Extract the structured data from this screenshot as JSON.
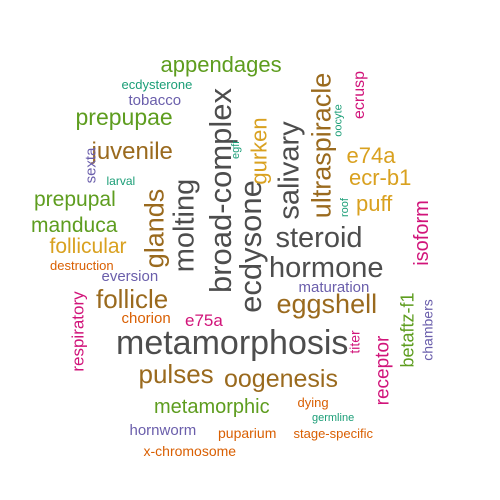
{
  "colors": {
    "dark_gray": "#4d4d4d",
    "brown": "#9a6a1e",
    "green": "#5e9d1f",
    "gold": "#d9a120",
    "magenta": "#d1147a",
    "purple": "#6a5eab",
    "teal": "#1b9e77",
    "orange": "#d95f02"
  },
  "words": [
    {
      "text": "metamorphosis",
      "color": "dark_gray"
    },
    {
      "text": "hormone",
      "color": "dark_gray"
    },
    {
      "text": "steroid",
      "color": "dark_gray"
    },
    {
      "text": "ecdysone",
      "color": "dark_gray"
    },
    {
      "text": "broad-complex",
      "color": "dark_gray"
    },
    {
      "text": "molting",
      "color": "dark_gray"
    },
    {
      "text": "salivary",
      "color": "dark_gray"
    },
    {
      "text": "glands",
      "color": "brown"
    },
    {
      "text": "ultraspiracle",
      "color": "brown"
    },
    {
      "text": "eggshell",
      "color": "brown"
    },
    {
      "text": "follicle",
      "color": "brown"
    },
    {
      "text": "pulses",
      "color": "brown"
    },
    {
      "text": "oogenesis",
      "color": "brown"
    },
    {
      "text": "juvenile",
      "color": "brown"
    },
    {
      "text": "gurken",
      "color": "gold"
    },
    {
      "text": "puff",
      "color": "gold"
    },
    {
      "text": "ecr-b1",
      "color": "gold"
    },
    {
      "text": "e74a",
      "color": "gold"
    },
    {
      "text": "follicular",
      "color": "gold"
    },
    {
      "text": "appendages",
      "color": "green"
    },
    {
      "text": "prepupae",
      "color": "green"
    },
    {
      "text": "prepupal",
      "color": "green"
    },
    {
      "text": "manduca",
      "color": "green"
    },
    {
      "text": "metamorphic",
      "color": "green"
    },
    {
      "text": "betaftz-f1",
      "color": "green"
    },
    {
      "text": "isoform",
      "color": "magenta"
    },
    {
      "text": "receptor",
      "color": "magenta"
    },
    {
      "text": "respiratory",
      "color": "magenta"
    },
    {
      "text": "e75a",
      "color": "magenta"
    },
    {
      "text": "ecrusp",
      "color": "magenta"
    },
    {
      "text": "titer",
      "color": "magenta"
    },
    {
      "text": "tobacco",
      "color": "purple"
    },
    {
      "text": "sexta",
      "color": "purple"
    },
    {
      "text": "eversion",
      "color": "purple"
    },
    {
      "text": "maturation",
      "color": "purple"
    },
    {
      "text": "chambers",
      "color": "purple"
    },
    {
      "text": "hornworm",
      "color": "purple"
    },
    {
      "text": "ecdysterone",
      "color": "teal"
    },
    {
      "text": "larval",
      "color": "teal"
    },
    {
      "text": "oocyte",
      "color": "teal"
    },
    {
      "text": "egfr",
      "color": "teal"
    },
    {
      "text": "roof",
      "color": "teal"
    },
    {
      "text": "germline",
      "color": "teal"
    },
    {
      "text": "destruction",
      "color": "orange"
    },
    {
      "text": "chorion",
      "color": "orange"
    },
    {
      "text": "dying",
      "color": "orange"
    },
    {
      "text": "puparium",
      "color": "orange"
    },
    {
      "text": "stage-specific",
      "color": "orange"
    },
    {
      "text": "x-chromosome",
      "color": "orange"
    }
  ]
}
